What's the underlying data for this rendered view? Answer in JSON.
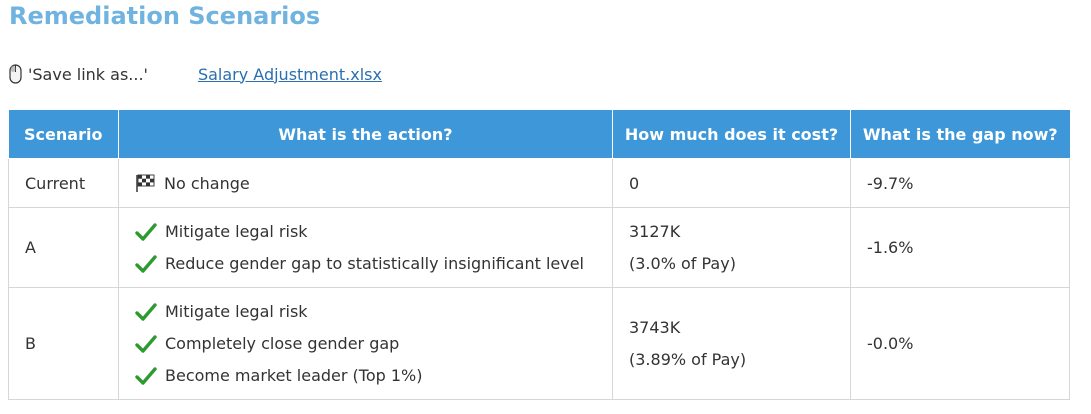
{
  "title": "Remediation Scenarios",
  "hint": {
    "icon": "mouse-icon",
    "text": "'Save link as...'",
    "link_label": "Salary Adjustment.xlsx"
  },
  "colors": {
    "title": "#6fb3e0",
    "header_bg": "#3d97d8",
    "check": "#2e9a2e",
    "link": "#2a6fb0"
  },
  "table": {
    "headers": [
      "Scenario",
      "What is the action?",
      "How much does it cost?",
      "What is the gap now?"
    ],
    "rows": [
      {
        "scenario": "Current",
        "actions": [
          {
            "icon": "checkered-flag-icon",
            "text": "No change"
          }
        ],
        "cost": [
          "0"
        ],
        "gap": "-9.7%"
      },
      {
        "scenario": "A",
        "actions": [
          {
            "icon": "check-icon",
            "text": "Mitigate legal risk"
          },
          {
            "icon": "check-icon",
            "text": "Reduce gender gap to statistically insignificant level"
          }
        ],
        "cost": [
          "3127K",
          "(3.0% of Pay)"
        ],
        "gap": "-1.6%"
      },
      {
        "scenario": "B",
        "actions": [
          {
            "icon": "check-icon",
            "text": "Mitigate legal risk"
          },
          {
            "icon": "check-icon",
            "text": "Completely close gender gap"
          },
          {
            "icon": "check-icon",
            "text": "Become market leader (Top 1%)"
          }
        ],
        "cost": [
          "3743K",
          "(3.89% of Pay)"
        ],
        "gap": "-0.0%"
      }
    ]
  }
}
